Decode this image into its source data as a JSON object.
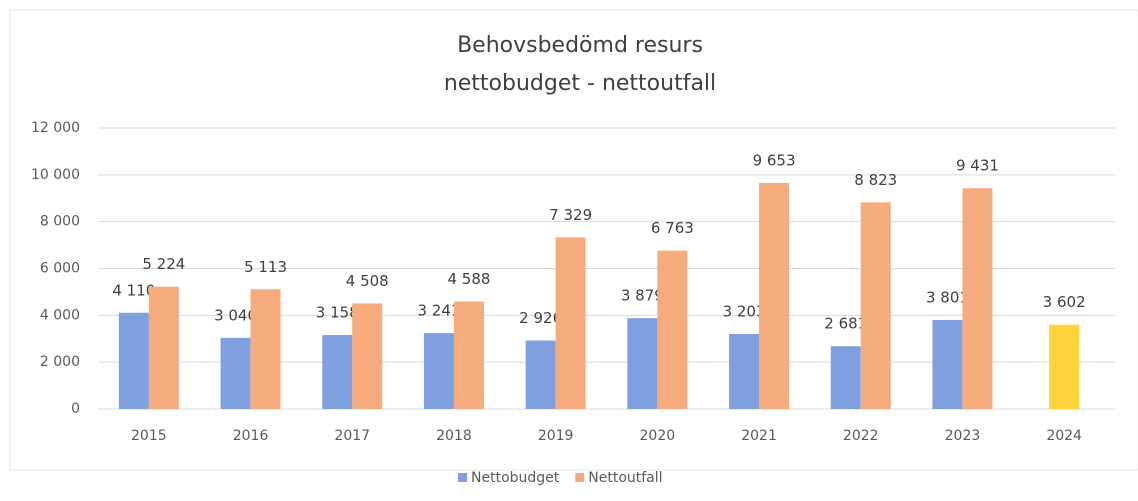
{
  "chart_data": {
    "type": "bar",
    "title": [
      "Behovsbedömd resurs",
      "nettobudget - nettoutfall"
    ],
    "categories": [
      "2015",
      "2016",
      "2017",
      "2018",
      "2019",
      "2020",
      "2021",
      "2022",
      "2023",
      "2024"
    ],
    "series": [
      {
        "name": "Nettobudget",
        "color": "#7f9fdf",
        "point_colors": [
          "#7f9fdf",
          "#7f9fdf",
          "#7f9fdf",
          "#7f9fdf",
          "#7f9fdf",
          "#7f9fdf",
          "#7f9fdf",
          "#7f9fdf",
          "#7f9fdf",
          "#ffd43b"
        ],
        "values": [
          4110,
          3040,
          3158,
          3241,
          2926,
          3879,
          3203,
          2681,
          3801,
          3602
        ],
        "value_labels": [
          "4 110",
          "3 040",
          "3 158",
          "3 241",
          "2 926",
          "3 879",
          "3 203",
          "2 681",
          "3 801",
          "3 602"
        ]
      },
      {
        "name": "Nettoutfall",
        "color": "#f5ab7c",
        "values": [
          5224,
          5113,
          4508,
          4588,
          7329,
          6763,
          9653,
          8823,
          9431,
          null
        ],
        "value_labels": [
          "5 224",
          "5 113",
          "4 508",
          "4 588",
          "7 329",
          "6 763",
          "9 653",
          "8 823",
          "9 431",
          null
        ]
      }
    ],
    "ylim": [
      0,
      12000
    ],
    "yticks": [
      0,
      {
        "value": 2000,
        "label": "2 000"
      },
      {
        "value": 4000,
        "label": "4 000"
      },
      {
        "value": 6000,
        "label": "6 000"
      },
      {
        "value": 8000,
        "label": "8 000"
      },
      {
        "value": 10000,
        "label": "10 000"
      },
      {
        "value": 12000,
        "label": "12 000"
      }
    ],
    "grid": true,
    "legend": "bottom"
  }
}
